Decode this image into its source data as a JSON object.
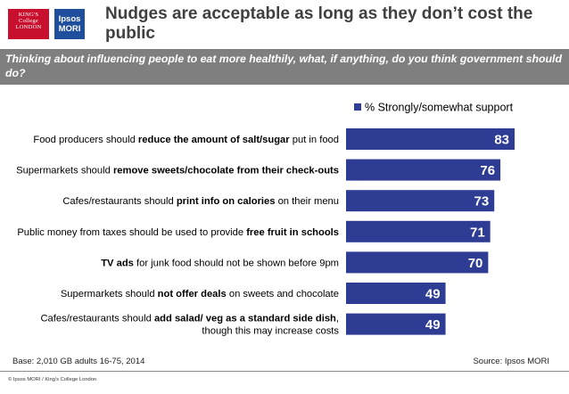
{
  "logos": {
    "kcl": [
      "KING'S",
      "College",
      "LONDON"
    ],
    "ipsos": [
      "Ipsos",
      "MORI"
    ]
  },
  "title": "Nudges are acceptable as long as they don’t cost the public",
  "question": "Thinking about influencing people to eat more healthily, what, if anything, do you think government should do?",
  "colors": {
    "bar": "#2e3c94",
    "header_band": "#7f7f7f",
    "title_text": "#404040"
  },
  "chart_data": {
    "type": "bar",
    "orientation": "horizontal",
    "legend": "top-right",
    "xlim": [
      0,
      100
    ],
    "series": [
      {
        "name": "% Strongly/somewhat support",
        "values": [
          83,
          76,
          73,
          71,
          70,
          49,
          49
        ]
      }
    ],
    "categories": [
      [
        {
          "t": "Food producers should ",
          "b": false
        },
        {
          "t": "reduce the amount of salt/sugar",
          "b": true
        },
        {
          "t": " put in food",
          "b": false
        }
      ],
      [
        {
          "t": "Supermarkets should ",
          "b": false
        },
        {
          "t": "remove sweets/chocolate from their check-outs",
          "b": true
        }
      ],
      [
        {
          "t": "Cafes/restaurants should ",
          "b": false
        },
        {
          "t": "print info on calories",
          "b": true
        },
        {
          "t": " on their menu",
          "b": false
        }
      ],
      [
        {
          "t": "Public money from taxes should be used to provide ",
          "b": false
        },
        {
          "t": "free fruit in schools",
          "b": true
        }
      ],
      [
        {
          "t": "TV ads",
          "b": true
        },
        {
          "t": " for junk food should not be shown before 9pm",
          "b": false
        }
      ],
      [
        {
          "t": "Supermarkets should ",
          "b": false
        },
        {
          "t": "not offer deals",
          "b": true
        },
        {
          "t": " on sweets and chocolate",
          "b": false
        }
      ],
      [
        {
          "t": "Cafes/restaurants should ",
          "b": false
        },
        {
          "t": "add salad/ veg as a standard side dish",
          "b": true
        },
        {
          "t": ",",
          "b": false
        },
        {
          "t": "though this may increase costs",
          "b": false,
          "nl": true
        }
      ]
    ]
  },
  "footer": {
    "base": "Base: 2,010 GB adults 16-75, 2014",
    "source": "Source: Ipsos MORI",
    "copyright": "© Ipsos MORI / King’s College London"
  }
}
